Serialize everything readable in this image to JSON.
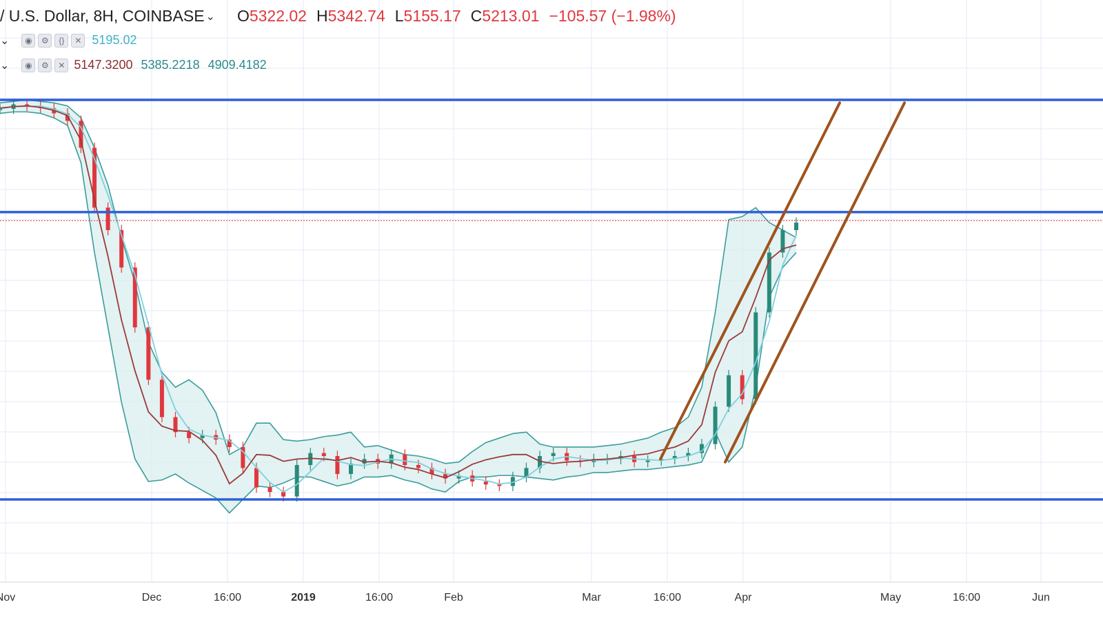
{
  "header": {
    "symbol_text": "/ U.S. Dollar, 8H, COINBASE",
    "open_key": "O",
    "open": "5322.02",
    "high_key": "H",
    "high": "5342.74",
    "low_key": "L",
    "low": "5155.17",
    "close_key": "C",
    "close": "5213.01",
    "change": "−105.57 (−1.98%)"
  },
  "indicators": [
    {
      "value": "5195.02",
      "color": "#3fb3c7"
    },
    {
      "basis": "5147.3200",
      "upper": "5385.2218",
      "lower": "4909.4182"
    }
  ],
  "icons": [
    "eye-icon",
    "gear-icon",
    "braces-icon",
    "close-icon",
    "chevron-down-icon"
  ],
  "colors": {
    "level_line": "#2f5fd8",
    "channel_line": "#a0521d",
    "band_fill": "#dcefef",
    "band_line": "#3a9c9c",
    "basis_line": "#9a3a3a",
    "ma_line": "#7fd0dd",
    "up_candle": "#2a8a7a",
    "down_candle": "#e0373e",
    "price_line": "#e0373e",
    "grid": "#e3eaf5"
  },
  "chart_data": {
    "type": "line",
    "title": "",
    "xlabel": "",
    "ylabel": "",
    "x_ticks": [
      "Nov",
      "Dec",
      "16:00",
      "2019",
      "16:00",
      "Feb",
      "Mar",
      "16:00",
      "Apr",
      "May",
      "16:00",
      "Jun"
    ],
    "ylim": [
      3000,
      6200
    ],
    "grid": true,
    "horizontal_levels": [
      6020,
      5270,
      3350
    ],
    "current_price": 5213.01,
    "series": [
      {
        "values": [
          5960,
          5990,
          5980,
          5965,
          5930,
          5880,
          5700,
          5300,
          5150,
          4900,
          4500,
          4150,
          3900,
          3800,
          3760,
          3780,
          3750,
          3700,
          3560,
          3430,
          3400,
          3370,
          3580,
          3660,
          3640,
          3520,
          3590,
          3620,
          3590,
          3650,
          3580,
          3560,
          3520,
          3490,
          3510,
          3470,
          3450,
          3440,
          3500,
          3560,
          3640,
          3660,
          3610,
          3600,
          3620,
          3620,
          3640,
          3600,
          3610,
          3620,
          3640,
          3660,
          3720,
          3970,
          4180,
          4020,
          4600,
          5000,
          5150,
          5200
        ]
      }
    ],
    "upper_band": [
      6000,
      6010,
      6020,
      6010,
      6000,
      5980,
      5900,
      5700,
      5450,
      5100,
      4800,
      4400,
      4200,
      4100,
      4150,
      4080,
      3930,
      3650,
      3700,
      3860,
      3860,
      3750,
      3740,
      3750,
      3770,
      3780,
      3800,
      3700,
      3710,
      3680,
      3650,
      3640,
      3620,
      3590,
      3600,
      3670,
      3730,
      3760,
      3790,
      3800,
      3720,
      3700,
      3700,
      3700,
      3700,
      3710,
      3720,
      3740,
      3760,
      3800,
      3830,
      3900,
      4100,
      4600,
      5220,
      5240,
      5300,
      5200,
      5150,
      5100
    ],
    "lower_band": [
      5930,
      5940,
      5940,
      5930,
      5900,
      5850,
      5600,
      5000,
      4500,
      4000,
      3620,
      3470,
      3480,
      3520,
      3460,
      3410,
      3360,
      3260,
      3350,
      3440,
      3430,
      3460,
      3500,
      3500,
      3470,
      3440,
      3460,
      3500,
      3500,
      3510,
      3480,
      3460,
      3420,
      3400,
      3470,
      3500,
      3500,
      3510,
      3510,
      3500,
      3490,
      3480,
      3500,
      3510,
      3530,
      3530,
      3540,
      3550,
      3550,
      3560,
      3570,
      3580,
      3600,
      3800,
      3600,
      3700,
      4100,
      4700,
      4900,
      5000
    ]
  },
  "trendlines": [
    {
      "from": [
        "Mar 15",
        3620
      ],
      "to": [
        "Apr 27",
        6000
      ]
    },
    {
      "from": [
        "Mar 30",
        3600
      ],
      "to": [
        "May 8",
        6000
      ]
    }
  ]
}
